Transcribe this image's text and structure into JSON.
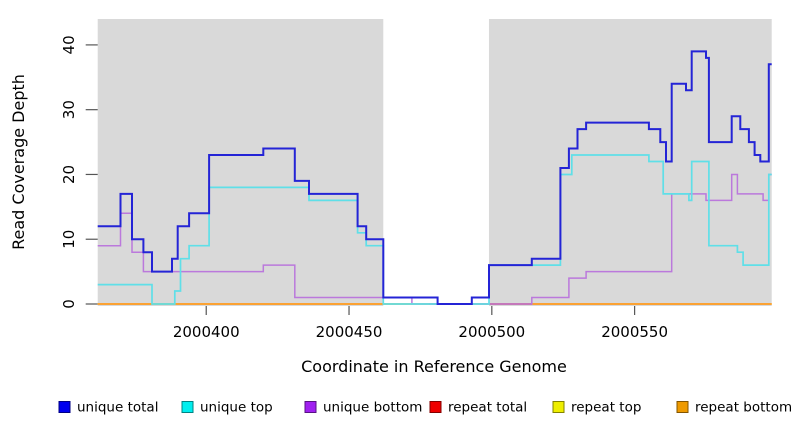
{
  "chart_data": {
    "type": "line",
    "subtype": "step",
    "title": "",
    "xlabel": "Coordinate in Reference Genome",
    "ylabel": "Read Coverage Depth",
    "xlim": [
      2000362,
      2000598
    ],
    "ylim": [
      0,
      44
    ],
    "x_ticks": [
      2000400,
      2000450,
      2000500,
      2000550
    ],
    "y_ticks": [
      0,
      10,
      20,
      30,
      40
    ],
    "grid": false,
    "plot_bg_color": "#d9d9d9",
    "gap_band": {
      "x_start": 2000462,
      "x_end": 2000499,
      "color": "#ffffff"
    },
    "legend_position": "bottom",
    "series": [
      {
        "name": "unique total",
        "color": "#2424d6",
        "legend_color": "#0000ee",
        "z": 6,
        "width": 2,
        "points": [
          [
            2000362,
            12
          ],
          [
            2000370,
            17
          ],
          [
            2000374,
            10
          ],
          [
            2000378,
            8
          ],
          [
            2000381,
            5
          ],
          [
            2000388,
            7
          ],
          [
            2000390,
            12
          ],
          [
            2000394,
            14
          ],
          [
            2000401,
            23
          ],
          [
            2000420,
            24
          ],
          [
            2000431,
            19
          ],
          [
            2000436,
            17
          ],
          [
            2000453,
            12
          ],
          [
            2000456,
            10
          ],
          [
            2000462,
            1
          ],
          [
            2000481,
            0
          ],
          [
            2000493,
            1
          ],
          [
            2000499,
            6
          ],
          [
            2000514,
            7
          ],
          [
            2000524,
            21
          ],
          [
            2000527,
            24
          ],
          [
            2000530,
            27
          ],
          [
            2000533,
            28
          ],
          [
            2000555,
            27
          ],
          [
            2000559,
            25
          ],
          [
            2000561,
            22
          ],
          [
            2000563,
            34
          ],
          [
            2000568,
            33
          ],
          [
            2000570,
            39
          ],
          [
            2000575,
            38
          ],
          [
            2000576,
            25
          ],
          [
            2000584,
            29
          ],
          [
            2000587,
            27
          ],
          [
            2000590,
            25
          ],
          [
            2000592,
            23
          ],
          [
            2000594,
            22
          ],
          [
            2000597,
            37
          ]
        ]
      },
      {
        "name": "unique top",
        "color": "#5fdfe8",
        "legend_color": "#00eeee",
        "z": 5,
        "width": 1.7,
        "points": [
          [
            2000362,
            3
          ],
          [
            2000381,
            0
          ],
          [
            2000389,
            2
          ],
          [
            2000391,
            7
          ],
          [
            2000394,
            9
          ],
          [
            2000401,
            18
          ],
          [
            2000436,
            16
          ],
          [
            2000453,
            11
          ],
          [
            2000456,
            9
          ],
          [
            2000462,
            0
          ],
          [
            2000499,
            6
          ],
          [
            2000524,
            20
          ],
          [
            2000528,
            23
          ],
          [
            2000555,
            22
          ],
          [
            2000560,
            17
          ],
          [
            2000569,
            16
          ],
          [
            2000570,
            22
          ],
          [
            2000576,
            9
          ],
          [
            2000586,
            8
          ],
          [
            2000588,
            6
          ],
          [
            2000597,
            20
          ]
        ]
      },
      {
        "name": "unique bottom",
        "color": "#bb79dc",
        "legend_color": "#a020f0",
        "z": 4,
        "width": 1.5,
        "points": [
          [
            2000362,
            9
          ],
          [
            2000370,
            14
          ],
          [
            2000374,
            8
          ],
          [
            2000378,
            5
          ],
          [
            2000420,
            6
          ],
          [
            2000431,
            1
          ],
          [
            2000472,
            0
          ],
          [
            2000514,
            1
          ],
          [
            2000527,
            4
          ],
          [
            2000533,
            5
          ],
          [
            2000563,
            17
          ],
          [
            2000575,
            16
          ],
          [
            2000584,
            20
          ],
          [
            2000586,
            17
          ],
          [
            2000595,
            16
          ],
          [
            2000597,
            20
          ]
        ]
      },
      {
        "name": "repeat total",
        "color": "#cc4466",
        "legend_color": "#ee0000",
        "z": 3,
        "width": 1.6,
        "points": [
          [
            2000478,
            0
          ],
          [
            2000514,
            0
          ]
        ],
        "x_end": 2000514
      },
      {
        "name": "repeat top",
        "color": "#e8de2a",
        "legend_color": "#eeee00",
        "z": 1,
        "width": 1.5,
        "points": [
          [
            2000362,
            0
          ]
        ]
      },
      {
        "name": "repeat bottom",
        "color": "#ff9a28",
        "legend_color": "#ee9a00",
        "z": 2,
        "width": 1.8,
        "points": [
          [
            2000362,
            0
          ]
        ]
      }
    ]
  }
}
